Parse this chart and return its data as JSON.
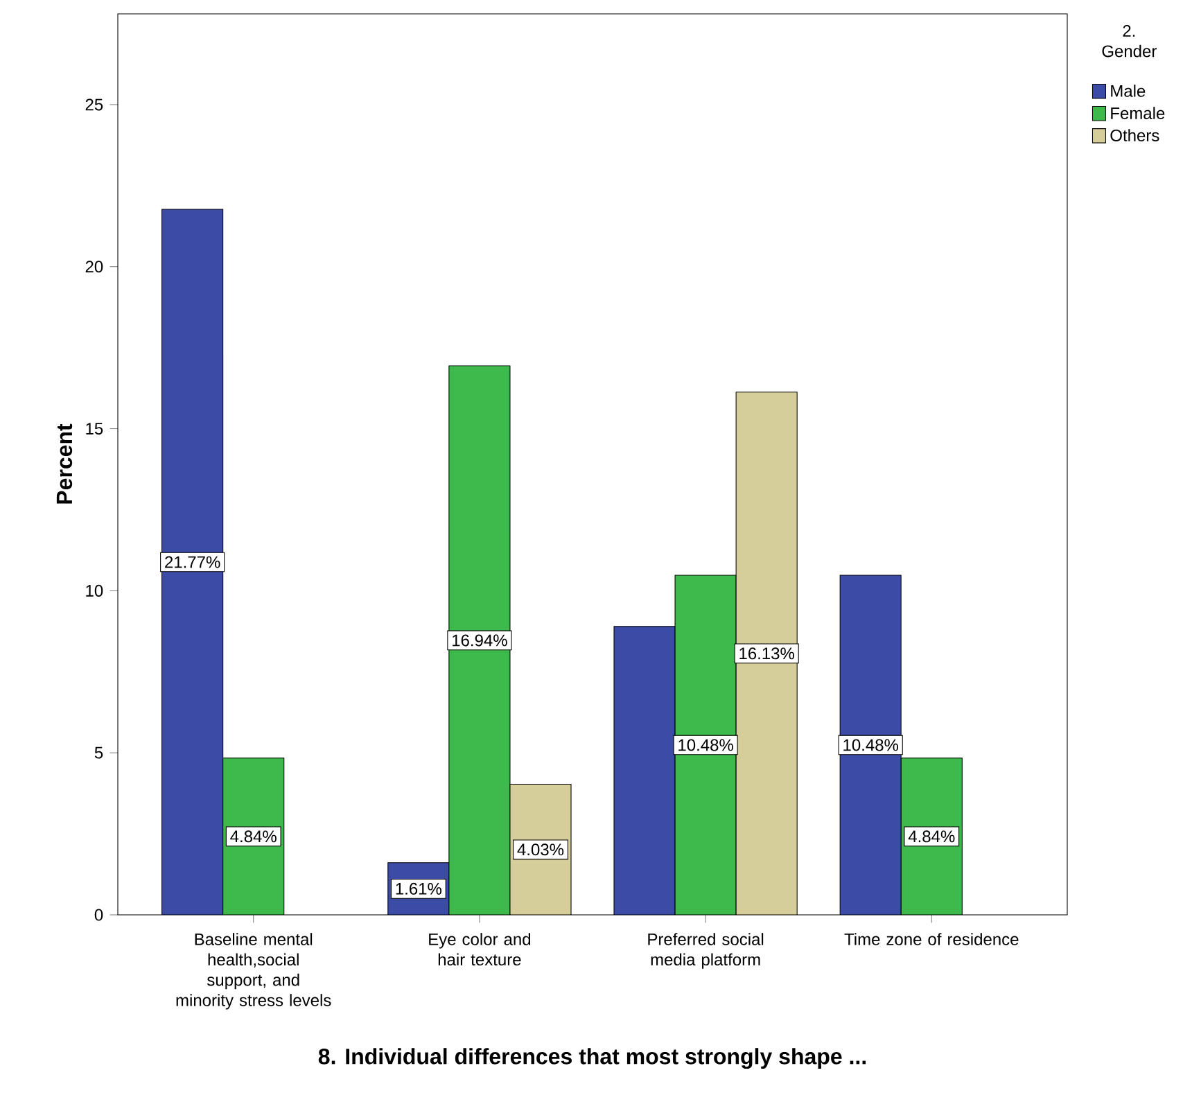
{
  "chart_data": {
    "type": "bar",
    "xlabel": "8. Individual differences that most strongly shape ...",
    "ylabel": "Percent",
    "legend_title": "2. Gender",
    "legend": "top right",
    "categories": [
      "Baseline mental health,social support, and minority stress levels",
      "Eye color and hair texture",
      "Preferred social media platform",
      "Time zone of residence"
    ],
    "series": [
      {
        "name": "Male",
        "color": "#3c4ca6",
        "values": [
          21.77,
          1.61,
          8.9,
          10.48
        ],
        "value_labels": [
          "21.77%",
          "1.61%",
          null,
          "10.48%"
        ]
      },
      {
        "name": "Female",
        "color": "#3dba4b",
        "values": [
          4.84,
          16.94,
          10.48,
          4.84
        ],
        "value_labels": [
          "4.84%",
          "16.94%",
          "10.48%",
          "4.84%"
        ]
      },
      {
        "name": "Others",
        "color": "#d5ce9a",
        "values": [
          null,
          4.03,
          16.13,
          null
        ],
        "value_labels": [
          null,
          "4.03%",
          "16.13%",
          null
        ]
      }
    ],
    "ylim": [
      0,
      27.8
    ],
    "yticks": [
      0,
      5,
      10,
      15,
      20,
      25
    ],
    "grid": false
  }
}
